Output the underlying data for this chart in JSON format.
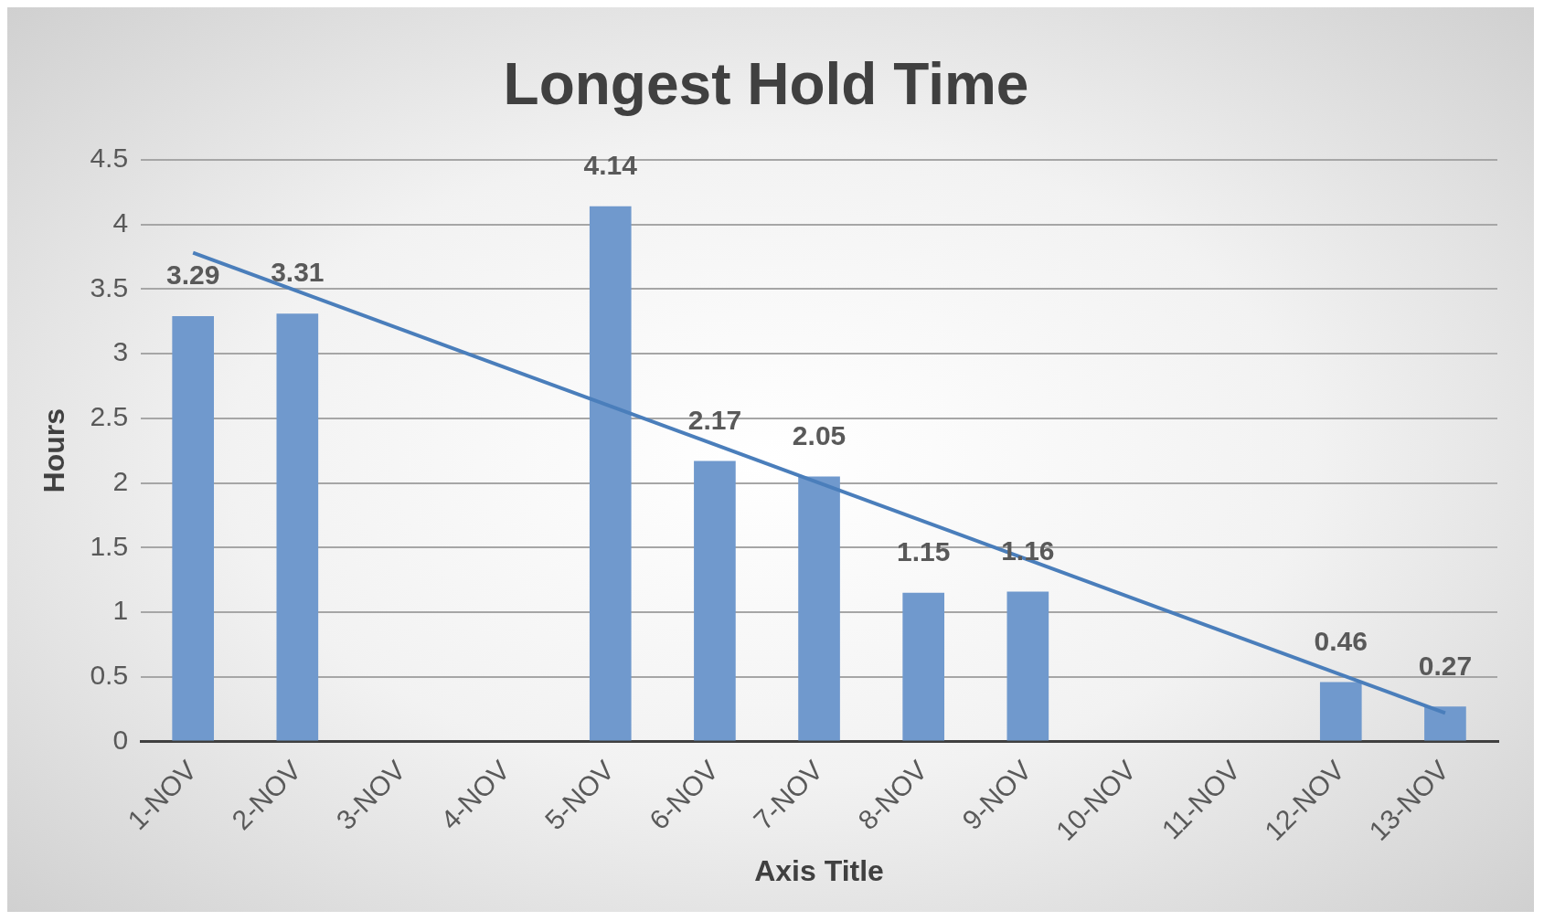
{
  "chart_data": {
    "type": "bar",
    "title": "Longest Hold Time",
    "xlabel": "Axis Title",
    "ylabel": "Hours",
    "categories": [
      "1-NOV",
      "2-NOV",
      "3-NOV",
      "4-NOV",
      "5-NOV",
      "6-NOV",
      "7-NOV",
      "8-NOV",
      "9-NOV",
      "10-NOV",
      "11-NOV",
      "12-NOV",
      "13-NOV"
    ],
    "series": [
      {
        "color": "#7099cd",
        "values": [
          3.29,
          3.31,
          null,
          null,
          4.14,
          2.17,
          2.05,
          1.15,
          1.16,
          null,
          null,
          0.46,
          0.27
        ],
        "value_labels": [
          "3.29",
          "3.31",
          null,
          null,
          "4.14",
          "2.17",
          "2.05",
          "1.15",
          "1.16",
          null,
          null,
          "0.46",
          "0.27"
        ]
      },
      {
        "type": "line",
        "color": "#4a7ebb",
        "x": [
          "1-NOV",
          "13-NOV"
        ],
        "values": [
          3.78,
          0.22
        ]
      }
    ],
    "ylim": [
      0,
      4.5
    ],
    "yticks": [
      0,
      0.5,
      1,
      1.5,
      2,
      2.5,
      3,
      3.5,
      4,
      4.5
    ],
    "grid": "y",
    "legend": false,
    "marker": "none"
  }
}
